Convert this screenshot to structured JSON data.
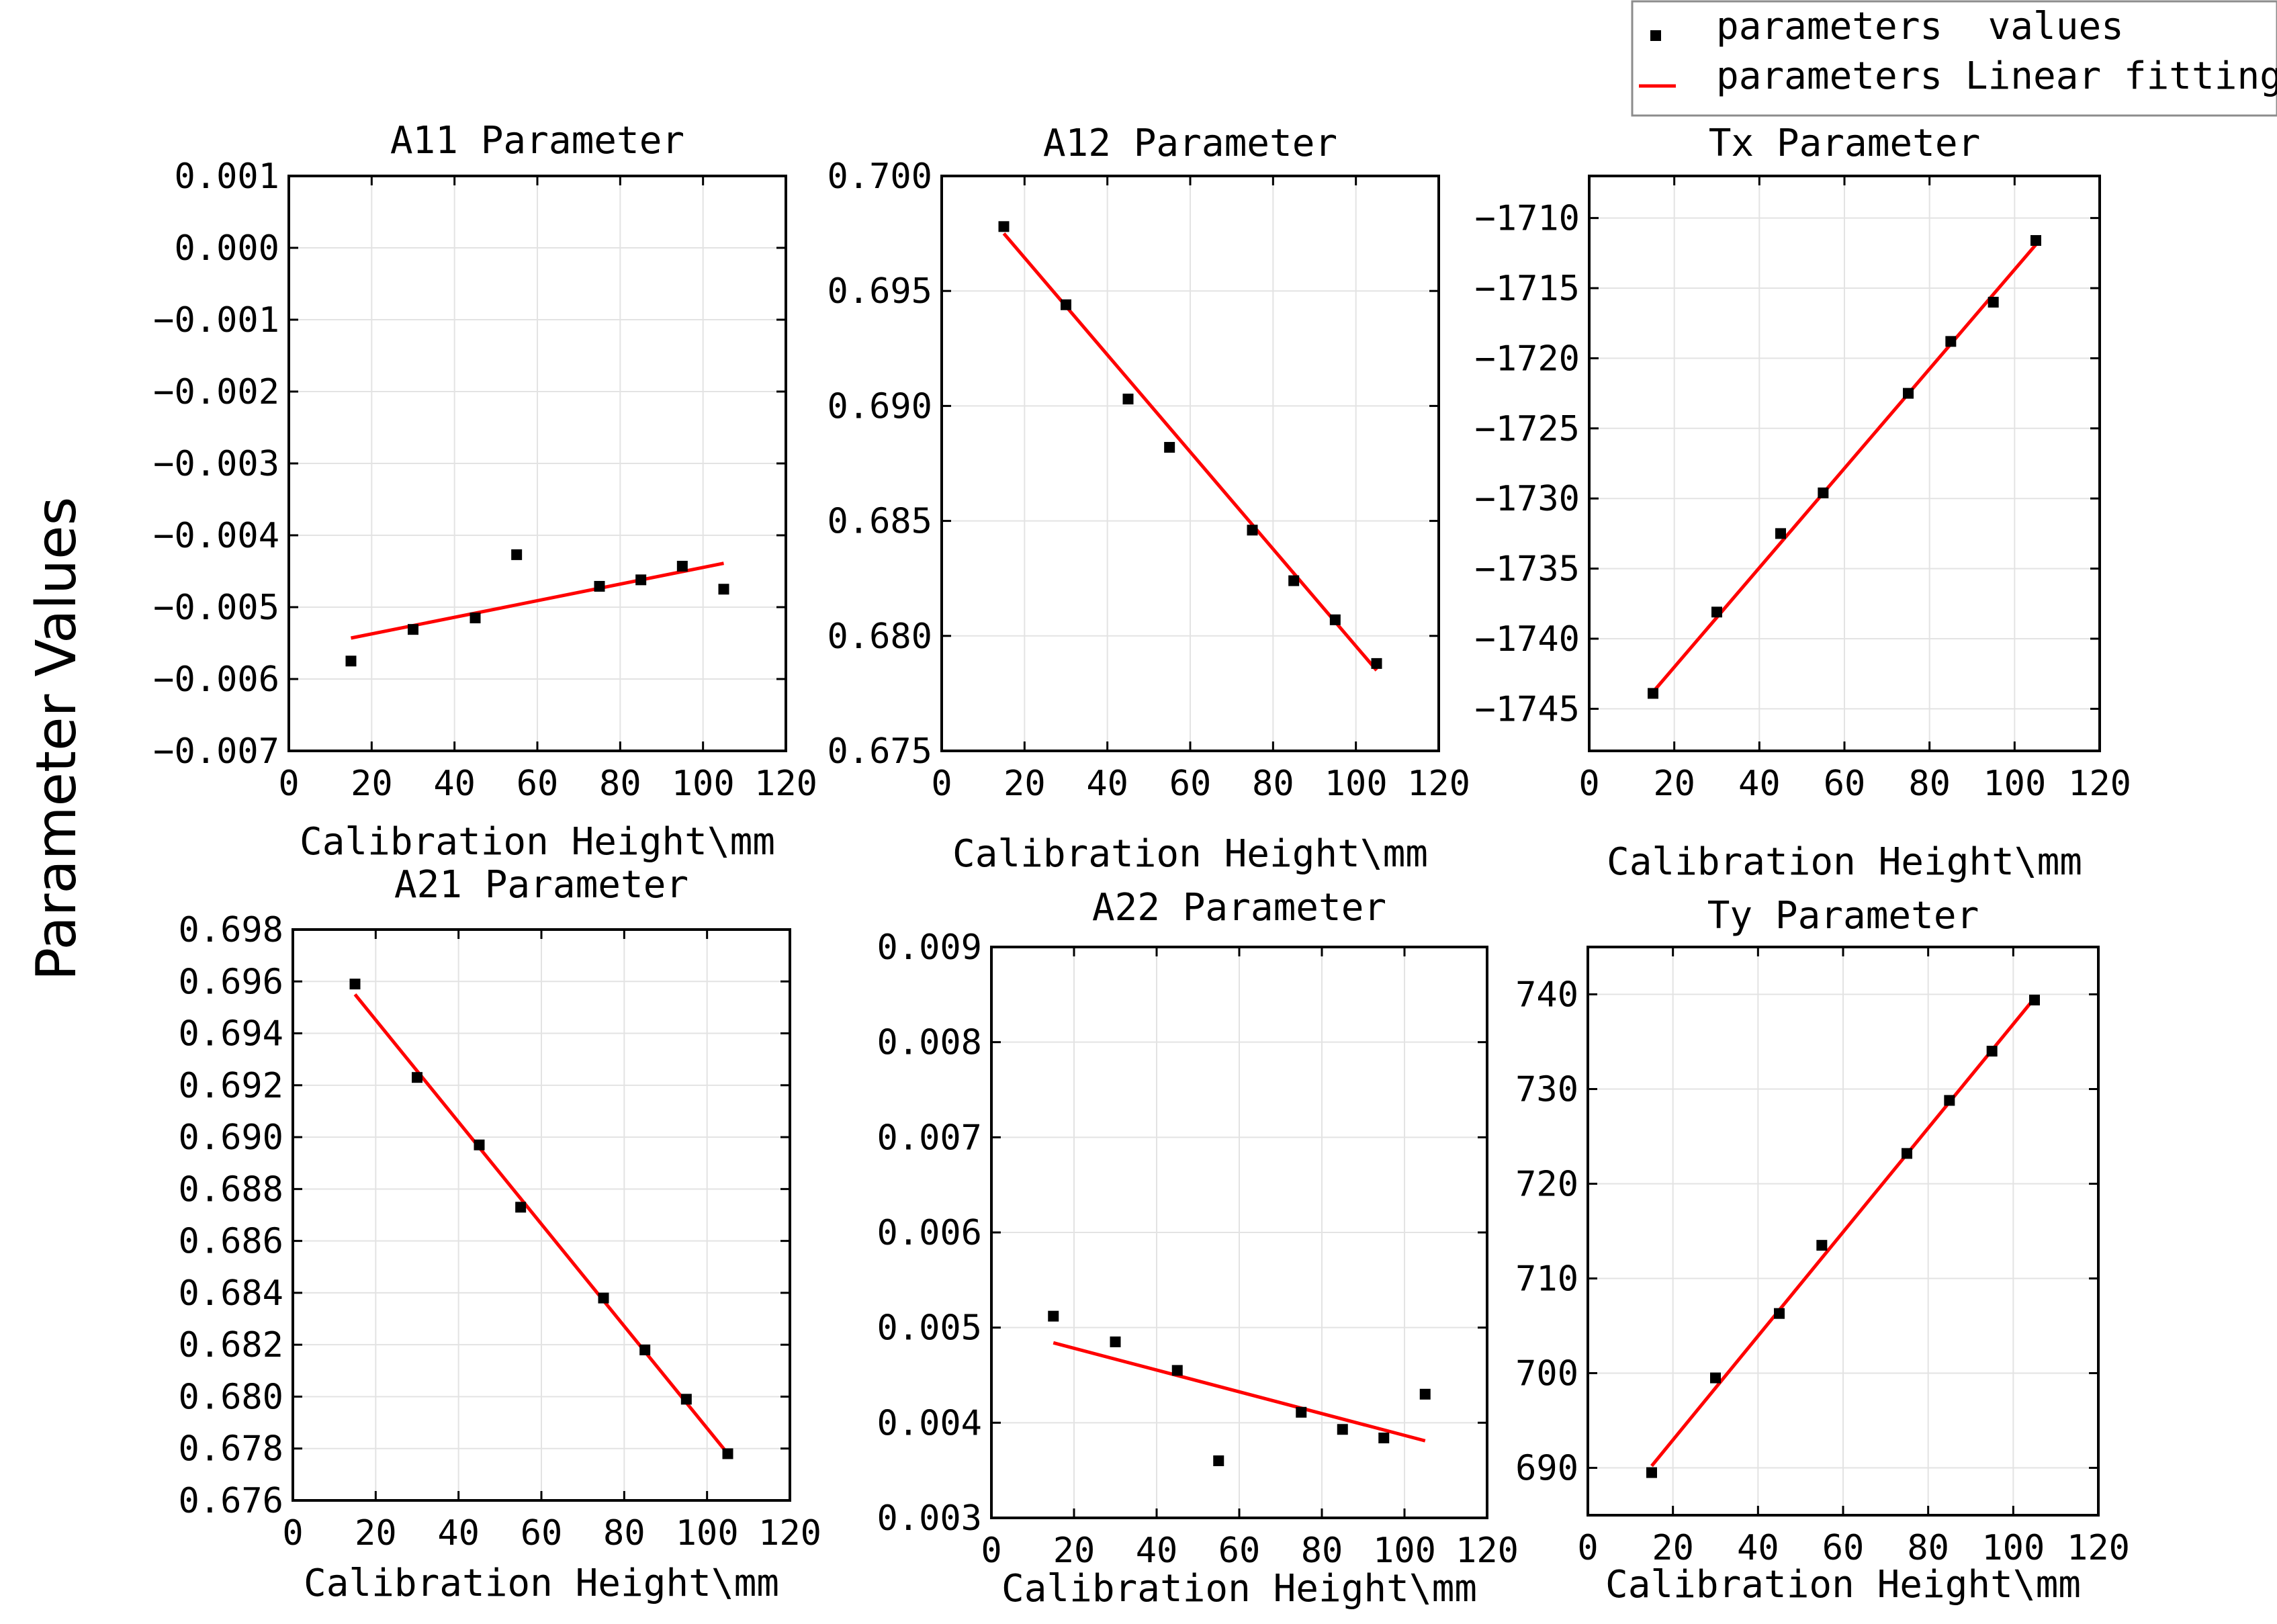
{
  "figure": {
    "y_axis_label": "Parameter Values",
    "legend": {
      "position": "top-right",
      "entries": [
        {
          "name": "parameters  values",
          "marker": "square",
          "color": "#000000"
        },
        {
          "name": "parameters Linear fitting",
          "marker": "line",
          "color": "#ff0000"
        }
      ]
    },
    "colors": {
      "points": "#000000",
      "fit_line": "#ff0000",
      "grid": "#e3e3e3",
      "axes": "#000000"
    }
  },
  "chart_data": [
    {
      "type": "scatter",
      "title": "A11 Parameter",
      "xlabel": "Calibration Height\\mm",
      "ylabel": "",
      "xlim": [
        0,
        120
      ],
      "ylim": [
        -0.007,
        0.001
      ],
      "xticks": [
        0,
        20,
        40,
        60,
        80,
        100,
        120
      ],
      "xtick_labels": [
        "0",
        "20",
        "40",
        "60",
        "80",
        "100",
        "120"
      ],
      "yticks": [
        0.001,
        0.0,
        -0.001,
        -0.002,
        -0.003,
        -0.004,
        -0.005,
        -0.006,
        -0.007
      ],
      "ytick_labels": [
        "0.001",
        "0.000",
        "−0.001",
        "−0.002",
        "−0.003",
        "−0.004",
        "−0.005",
        "−0.006",
        "−0.007"
      ],
      "x": [
        15,
        30,
        45,
        55,
        75,
        85,
        95,
        105
      ],
      "values": [
        -0.00575,
        -0.00531,
        -0.00515,
        -0.00427,
        -0.00471,
        -0.00462,
        -0.00443,
        -0.00475
      ],
      "fit": {
        "x": [
          15,
          105
        ],
        "y": [
          -0.00543,
          -0.00439
        ]
      },
      "grid": true
    },
    {
      "type": "scatter",
      "title": "A12 Parameter",
      "xlabel": "Calibration Height\\mm",
      "ylabel": "",
      "xlim": [
        0,
        120
      ],
      "ylim": [
        0.675,
        0.7
      ],
      "xticks": [
        0,
        20,
        40,
        60,
        80,
        100,
        120
      ],
      "xtick_labels": [
        "0",
        "20",
        "40",
        "60",
        "80",
        "100",
        "120"
      ],
      "yticks": [
        0.7,
        0.695,
        0.69,
        0.685,
        0.68,
        0.675
      ],
      "ytick_labels": [
        "0.700",
        "0.695",
        "0.690",
        "0.685",
        "0.680",
        "0.675"
      ],
      "x": [
        15,
        30,
        45,
        55,
        75,
        85,
        95,
        105
      ],
      "values": [
        0.6978,
        0.6944,
        0.6903,
        0.6882,
        0.6846,
        0.6824,
        0.6807,
        0.6788
      ],
      "fit": {
        "x": [
          15,
          105
        ],
        "y": [
          0.6975,
          0.6785
        ]
      },
      "grid": true
    },
    {
      "type": "scatter",
      "title": "Tx Parameter",
      "xlabel": "Calibration Height\\mm",
      "ylabel": "",
      "xlim": [
        0,
        120
      ],
      "ylim": [
        -1748,
        -1707
      ],
      "xticks": [
        0,
        20,
        40,
        60,
        80,
        100,
        120
      ],
      "xtick_labels": [
        "0",
        "20",
        "40",
        "60",
        "80",
        "100",
        "120"
      ],
      "yticks": [
        -1710,
        -1715,
        -1720,
        -1725,
        -1730,
        -1735,
        -1740,
        -1745
      ],
      "ytick_labels": [
        "−1710",
        "−1715",
        "−1720",
        "−1725",
        "−1730",
        "−1735",
        "−1740",
        "−1745"
      ],
      "x": [
        15,
        30,
        45,
        55,
        75,
        85,
        95,
        105
      ],
      "values": [
        -1743.9,
        -1738.1,
        -1732.5,
        -1729.6,
        -1722.5,
        -1718.8,
        -1716.0,
        -1711.6
      ],
      "fit": {
        "x": [
          15,
          105
        ],
        "y": [
          -1743.8,
          -1711.9
        ]
      },
      "grid": true
    },
    {
      "type": "scatter",
      "title": "A21 Parameter",
      "xlabel": "Calibration Height\\mm",
      "ylabel": "",
      "xlim": [
        0,
        120
      ],
      "ylim": [
        0.676,
        0.698
      ],
      "xticks": [
        0,
        20,
        40,
        60,
        80,
        100,
        120
      ],
      "xtick_labels": [
        "0",
        "20",
        "40",
        "60",
        "80",
        "100",
        "120"
      ],
      "yticks": [
        0.698,
        0.696,
        0.694,
        0.692,
        0.69,
        0.688,
        0.686,
        0.684,
        0.682,
        0.68,
        0.678,
        0.676
      ],
      "ytick_labels": [
        "0.698",
        "0.696",
        "0.694",
        "0.692",
        "0.690",
        "0.688",
        "0.686",
        "0.684",
        "0.682",
        "0.680",
        "0.678",
        "0.676"
      ],
      "x": [
        15,
        30,
        45,
        55,
        75,
        85,
        95,
        105
      ],
      "values": [
        0.6959,
        0.6923,
        0.6897,
        0.6873,
        0.6838,
        0.6818,
        0.6799,
        0.6778
      ],
      "fit": {
        "x": [
          15,
          105
        ],
        "y": [
          0.6955,
          0.6778
        ]
      },
      "grid": true
    },
    {
      "type": "scatter",
      "title": "A22 Parameter",
      "xlabel": "Calibration Height\\mm",
      "ylabel": "",
      "xlim": [
        0,
        120
      ],
      "ylim": [
        0.003,
        0.009
      ],
      "xticks": [
        0,
        20,
        40,
        60,
        80,
        100,
        120
      ],
      "xtick_labels": [
        "0",
        "20",
        "40",
        "60",
        "80",
        "100",
        "120"
      ],
      "yticks": [
        0.009,
        0.008,
        0.007,
        0.006,
        0.005,
        0.004,
        0.003
      ],
      "ytick_labels": [
        "0.009",
        "0.008",
        "0.007",
        "0.006",
        "0.005",
        "0.004",
        "0.003"
      ],
      "x": [
        15,
        30,
        45,
        55,
        75,
        85,
        95,
        105
      ],
      "values": [
        0.00512,
        0.00485,
        0.00455,
        0.0036,
        0.00411,
        0.00393,
        0.00384,
        0.0043
      ],
      "fit": {
        "x": [
          15,
          105
        ],
        "y": [
          0.00484,
          0.00381
        ]
      },
      "grid": true
    },
    {
      "type": "scatter",
      "title": "Ty Parameter",
      "xlabel": "Calibration Height\\mm",
      "ylabel": "",
      "xlim": [
        0,
        120
      ],
      "ylim": [
        685,
        745
      ],
      "xticks": [
        0,
        20,
        40,
        60,
        80,
        100,
        120
      ],
      "xtick_labels": [
        "0",
        "20",
        "40",
        "60",
        "80",
        "100",
        "120"
      ],
      "yticks": [
        740,
        730,
        720,
        710,
        700,
        690
      ],
      "ytick_labels": [
        "740",
        "730",
        "720",
        "710",
        "700",
        "690"
      ],
      "x": [
        15,
        30,
        45,
        55,
        75,
        85,
        95,
        105
      ],
      "values": [
        689.5,
        699.5,
        706.3,
        713.5,
        723.2,
        728.8,
        734.0,
        739.4
      ],
      "fit": {
        "x": [
          15,
          105
        ],
        "y": [
          690.2,
          739.6
        ]
      },
      "grid": true
    }
  ]
}
